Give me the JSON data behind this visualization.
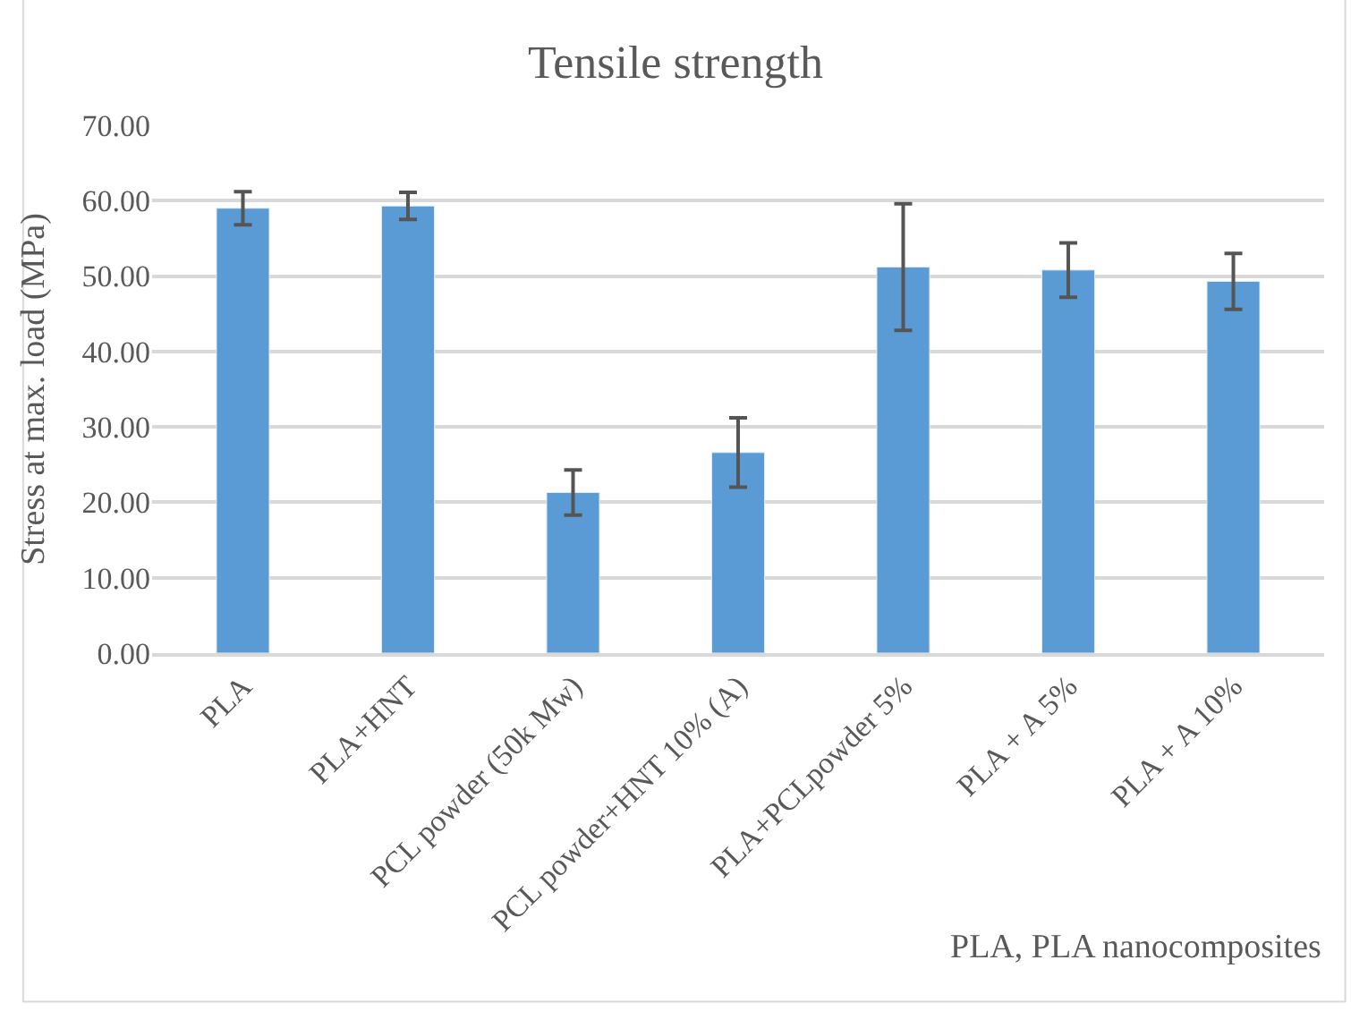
{
  "chart_data": {
    "type": "bar",
    "title": "Tensile strength",
    "ylabel": "Stress at max. load (MPa)",
    "categories": [
      "PLA",
      "PLA+HNT",
      "PCL powder (50k Mw)",
      "PCL powder+HNT 10% (A)",
      "PLA+PCLpowder 5%",
      "PLA + A 5%",
      "PLA + A 10%"
    ],
    "values": [
      59.0,
      59.3,
      21.3,
      26.6,
      51.2,
      50.8,
      49.3
    ],
    "errors": [
      2.2,
      1.8,
      3.0,
      4.6,
      8.4,
      3.6,
      3.7
    ],
    "color": "#5b9bd5",
    "ylim": [
      0,
      70
    ],
    "yticks": [
      {
        "value": 0,
        "label": "0.00"
      },
      {
        "value": 10,
        "label": "10.00"
      },
      {
        "value": 20,
        "label": "20.00"
      },
      {
        "value": 30,
        "label": "30.00"
      },
      {
        "value": 40,
        "label": "40.00"
      },
      {
        "value": 50,
        "label": "50.00"
      },
      {
        "value": 60,
        "label": "60.00"
      },
      {
        "value": 70,
        "label": "70.00"
      }
    ],
    "grid": "y",
    "legend": false,
    "annotations": [
      "PLA, PLA nanocomposites"
    ]
  }
}
